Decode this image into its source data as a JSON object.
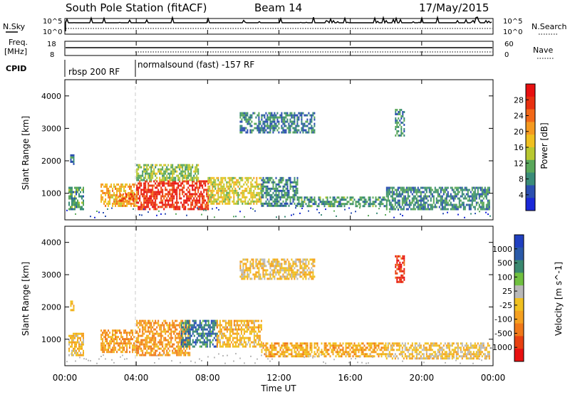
{
  "header": {
    "station": "South Pole Station (fitACF)",
    "beam": "Beam 14",
    "date": "17/May/2015"
  },
  "panels": {
    "nsky_label": "N.Sky",
    "nsearch_label": "N.Search",
    "freq_label_1": "Freq.",
    "freq_label_2": "[MHz]",
    "nave_label": "Nave",
    "cpid_label": "CPID",
    "left_ticks_nsky": [
      "10^5",
      "10^0"
    ],
    "right_ticks_nsky": [
      "10^5",
      "10^0"
    ],
    "left_ticks_freq": [
      "18",
      "8"
    ],
    "right_ticks_nave": [
      "60",
      "0"
    ],
    "cpid_entries": [
      "rbsp 200 RF",
      "normalsound (fast) -157 RF"
    ]
  },
  "power_panel": {
    "ylabel": "Slant Range [km]",
    "yticks": [
      "1000",
      "2000",
      "3000",
      "4000"
    ],
    "colorbar_label": "Power [dB]",
    "colorbar_ticks": [
      "4",
      "8",
      "12",
      "16",
      "20",
      "24",
      "28"
    ],
    "colors": [
      "#1a28d8",
      "#2b4fb0",
      "#3a8c78",
      "#5aa85a",
      "#b8c830",
      "#f0c020",
      "#f59a20",
      "#f26818",
      "#e83010",
      "#e81010"
    ]
  },
  "velocity_panel": {
    "ylabel": "Slant Range [km]",
    "yticks": [
      "1000",
      "2000",
      "3000",
      "4000"
    ],
    "colorbar_label": "Velocity [m s^-1]",
    "colorbar_ticks": [
      "1000",
      "500",
      "100",
      "25",
      "-25",
      "-100",
      "-500",
      "-1000"
    ],
    "colors": [
      "#2040c0",
      "#2a5aa8",
      "#3a8870",
      "#70c040",
      "#b8b8b8",
      "#f0c020",
      "#f5a020",
      "#f07818",
      "#e84010",
      "#e81010"
    ]
  },
  "xaxis": {
    "label": "Time UT",
    "ticks": [
      "00:00",
      "04:00",
      "08:00",
      "12:00",
      "16:00",
      "20:00",
      "00:00"
    ]
  },
  "chart_data": [
    {
      "type": "heatmap",
      "title": "Power",
      "xlabel": "Time UT",
      "ylabel": "Slant Range [km]",
      "xlim": [
        0,
        24
      ],
      "ylim": [
        180,
        4500
      ],
      "colorbar": "Power [dB]",
      "clim": [
        0,
        30
      ],
      "regions": [
        {
          "t": [
            0.2,
            1.0
          ],
          "r": [
            500,
            1200
          ],
          "v": 9
        },
        {
          "t": [
            0.3,
            0.5
          ],
          "r": [
            1900,
            2200
          ],
          "v": 6
        },
        {
          "t": [
            2.0,
            4.0
          ],
          "r": [
            600,
            1300
          ],
          "v": 18
        },
        {
          "t": [
            3.0,
            4.0
          ],
          "r": [
            800,
            1000
          ],
          "v": 24
        },
        {
          "t": [
            4.0,
            8.0
          ],
          "r": [
            500,
            1400
          ],
          "v": 26
        },
        {
          "t": [
            4.0,
            7.5
          ],
          "r": [
            1400,
            1900
          ],
          "v": 12
        },
        {
          "t": [
            8.0,
            11.0
          ],
          "r": [
            700,
            1500
          ],
          "v": 15
        },
        {
          "t": [
            11.0,
            13.0
          ],
          "r": [
            600,
            1500
          ],
          "v": 8
        },
        {
          "t": [
            13.0,
            18.0
          ],
          "r": [
            600,
            900
          ],
          "v": 9
        },
        {
          "t": [
            18.0,
            23.8
          ],
          "r": [
            500,
            1200
          ],
          "v": 8
        },
        {
          "t": [
            9.8,
            14.0
          ],
          "r": [
            2900,
            3500
          ],
          "v": 7
        },
        {
          "t": [
            18.5,
            19.0
          ],
          "r": [
            2800,
            3600
          ],
          "v": 8
        }
      ]
    },
    {
      "type": "heatmap",
      "title": "Velocity",
      "xlabel": "Time UT",
      "ylabel": "Slant Range [km]",
      "xlim": [
        0,
        24
      ],
      "ylim": [
        180,
        4500
      ],
      "colorbar": "Velocity [m s^-1]",
      "clim": [
        -1000,
        1000
      ],
      "regions": [
        {
          "t": [
            0.2,
            1.0
          ],
          "r": [
            500,
            1200
          ],
          "v": -150
        },
        {
          "t": [
            0.3,
            0.5
          ],
          "r": [
            1900,
            2200
          ],
          "v": -200
        },
        {
          "t": [
            2.0,
            4.0
          ],
          "r": [
            600,
            1300
          ],
          "v": -300
        },
        {
          "t": [
            4.0,
            7.0
          ],
          "r": [
            500,
            1600
          ],
          "v": -350
        },
        {
          "t": [
            6.5,
            8.5
          ],
          "r": [
            800,
            1600
          ],
          "v": 600
        },
        {
          "t": [
            8.5,
            11.0
          ],
          "r": [
            800,
            1600
          ],
          "v": -200
        },
        {
          "t": [
            11.0,
            18.0
          ],
          "r": [
            500,
            900
          ],
          "v": -250
        },
        {
          "t": [
            18.0,
            23.8
          ],
          "r": [
            400,
            900
          ],
          "v": -100
        },
        {
          "t": [
            9.8,
            14.0
          ],
          "r": [
            2900,
            3500
          ],
          "v": -100
        },
        {
          "t": [
            18.5,
            19.0
          ],
          "r": [
            2800,
            3600
          ],
          "v": -800
        }
      ]
    }
  ]
}
